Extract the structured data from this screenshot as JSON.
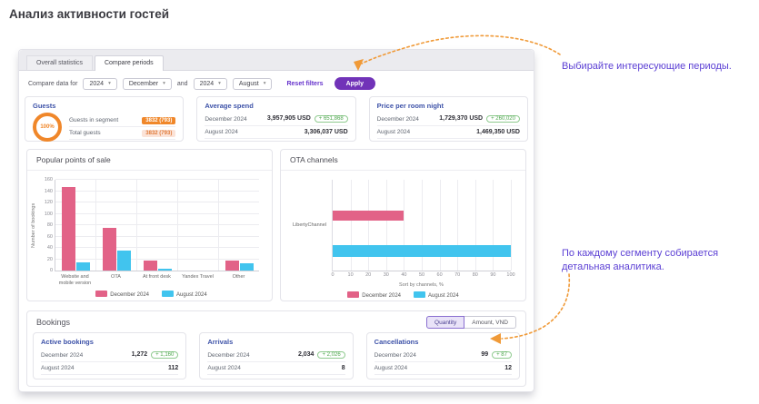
{
  "page_title": "Анализ активности гостей",
  "tabs": [
    {
      "label": "Overall statistics",
      "active": false
    },
    {
      "label": "Compare periods",
      "active": true
    }
  ],
  "filters": {
    "label": "Compare data for",
    "year_from": "2024",
    "month_from": "December",
    "conjunction": "and",
    "year_to": "2024",
    "month_to": "August",
    "reset_label": "Reset filters",
    "apply_label": "Apply"
  },
  "kpi": {
    "guests": {
      "title": "Guests",
      "gauge": "100%",
      "rows": [
        {
          "label": "Guests in segment",
          "badge": "3832 (793)"
        },
        {
          "label": "Total guests",
          "badge": "3832 (793)"
        }
      ]
    },
    "average_spend": {
      "title": "Average spend",
      "rows": [
        {
          "label": "December 2024",
          "value": "3,957,905 USD",
          "delta": "+ 651,868"
        },
        {
          "label": "August 2024",
          "value": "3,306,037 USD"
        }
      ]
    },
    "price_per_room_night": {
      "title": "Price per room night",
      "rows": [
        {
          "label": "December 2024",
          "value": "1,729,370 USD",
          "delta": "+ 260,020"
        },
        {
          "label": "August 2024",
          "value": "1,469,350 USD"
        }
      ]
    }
  },
  "bookings": {
    "title": "Bookings",
    "toggle": [
      {
        "label": "Quantity",
        "active": true
      },
      {
        "label": "Amount, VND",
        "active": false
      }
    ],
    "cards": [
      {
        "title": "Active bookings",
        "rows": [
          {
            "label": "December 2024",
            "value": "1,272",
            "delta": "+ 1,160"
          },
          {
            "label": "August 2024",
            "value": "112"
          }
        ]
      },
      {
        "title": "Arrivals",
        "rows": [
          {
            "label": "December 2024",
            "value": "2,034",
            "delta": "+ 2,026"
          },
          {
            "label": "August 2024",
            "value": "8"
          }
        ]
      },
      {
        "title": "Cancellations",
        "rows": [
          {
            "label": "December 2024",
            "value": "99",
            "delta": "+ 87"
          },
          {
            "label": "August 2024",
            "value": "12"
          }
        ]
      }
    ]
  },
  "annotations": [
    {
      "text": "Выбирайте интересующие периоды."
    },
    {
      "text": "По каждому сегменту собирается детальная аналитика."
    }
  ],
  "chart_data": [
    {
      "type": "bar",
      "orientation": "vertical",
      "title": "Popular points of sale",
      "categories": [
        "Website and mobile version",
        "OTA",
        "At front desk",
        "Yandex Travel",
        "Other"
      ],
      "series": [
        {
          "name": "December 2024",
          "values": [
            147,
            75,
            17,
            0,
            17
          ],
          "color": "#e26287"
        },
        {
          "name": "August 2024",
          "values": [
            14,
            36,
            4,
            0,
            13
          ],
          "color": "#41c4ee"
        }
      ],
      "xlabel": "",
      "ylabel": "Number of bookings",
      "ylim": [
        0,
        160
      ],
      "ytick_step": 20,
      "grid": true,
      "legend_position": "bottom"
    },
    {
      "type": "bar",
      "orientation": "horizontal",
      "title": "OTA channels",
      "categories": [
        "LibertyChannel"
      ],
      "series": [
        {
          "name": "December 2024",
          "values": [
            40
          ],
          "color": "#e26287"
        },
        {
          "name": "August 2024",
          "values": [
            100
          ],
          "color": "#41c4ee"
        }
      ],
      "xlabel": "Sort by channels, %",
      "ylabel": "",
      "xlim": [
        0,
        100
      ],
      "xtick_step": 10,
      "grid": true,
      "legend_position": "bottom"
    }
  ],
  "colors": {
    "accent_purple": "#7133b8",
    "link_purple": "#6633cc",
    "annotation_purple": "#5b3fd4",
    "arrow_orange": "#f09a38",
    "orange": "#f0872a",
    "pink": "#e26287",
    "blue": "#41c4ee",
    "green": "#4ca64c",
    "card_title_blue": "#3d52a8"
  }
}
